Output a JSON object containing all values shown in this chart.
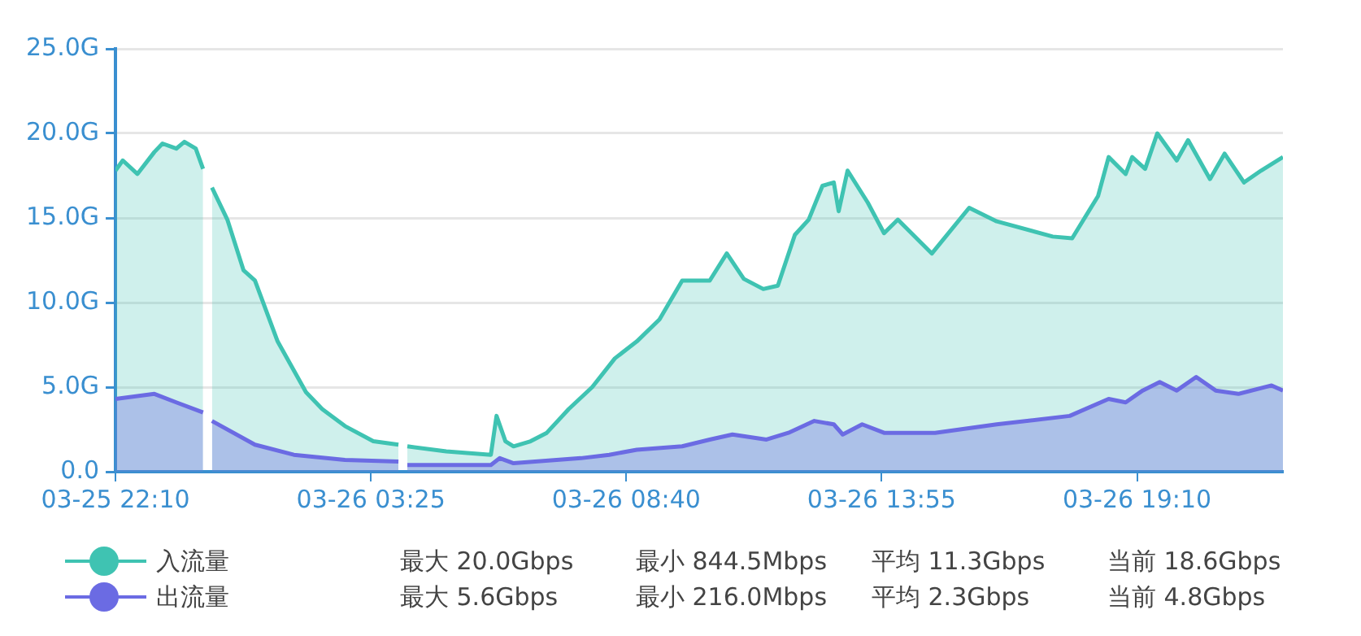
{
  "chart_data": {
    "type": "area",
    "xlim": [
      "--03-25T22:10",
      "--03-26T22:10"
    ],
    "xticks": [
      {
        "value": "--03-25T22:10",
        "label": "03-25 22:10"
      },
      {
        "value": "--03-26T03:25",
        "label": "03-26 03:25"
      },
      {
        "value": "--03-26T08:40",
        "label": "03-26 08:40"
      },
      {
        "value": "--03-26T13:55",
        "label": "03-26 13:55"
      },
      {
        "value": "--03-26T19:10",
        "label": "03-26 19:10"
      }
    ],
    "ylim": [
      0,
      25
    ],
    "yticks": [
      {
        "value": 0,
        "label": "0.0"
      },
      {
        "value": 5,
        "label": "5.0G"
      },
      {
        "value": 10,
        "label": "10.0G"
      },
      {
        "value": 15,
        "label": "15.0G"
      },
      {
        "value": 20,
        "label": "20.0G"
      },
      {
        "value": 25,
        "label": "25.0G"
      }
    ],
    "grid": "y",
    "legend": "bottom left",
    "marker": "none",
    "line_style": "solid",
    "series": [
      {
        "name": "入流量",
        "color": "#3fc3b2",
        "x": [
          "--03-25T22:10",
          "--03-25T22:19",
          "--03-25T22:37",
          "--03-25T22:58",
          "--03-25T23:08",
          "--03-25T23:25",
          "--03-25T23:35",
          "--03-25T23:49",
          "--03-25T23:58",
          "--03-26T00:04",
          "--03-26T00:09",
          "--03-26T00:28",
          "--03-26T00:48",
          "--03-26T01:02",
          "--03-26T01:30",
          "--03-26T02:05",
          "--03-26T02:25",
          "--03-26T02:53",
          "--03-26T03:28",
          "--03-26T03:59",
          "--03-26T04:04",
          "--03-26T04:10",
          "--03-26T04:58",
          "--03-26T05:53",
          "--03-26T06:00",
          "--03-26T06:11",
          "--03-26T06:21",
          "--03-26T06:42",
          "--03-26T07:02",
          "--03-26T07:29",
          "--03-26T07:58",
          "--03-26T08:26",
          "--03-26T08:53",
          "--03-26T09:21",
          "--03-26T09:49",
          "--03-26T10:23",
          "--03-26T10:44",
          "--03-26T11:05",
          "--03-26T11:29",
          "--03-26T11:47",
          "--03-26T12:08",
          "--03-26T12:25",
          "--03-26T12:42",
          "--03-26T12:56",
          "--03-26T13:02",
          "--03-26T13:13",
          "--03-26T13:38",
          "--03-26T13:58",
          "--03-26T14:15",
          "--03-26T14:57",
          "--03-26T15:43",
          "--03-26T16:17",
          "--03-26T17:26",
          "--03-26T17:50",
          "--03-26T18:22",
          "--03-26T18:35",
          "--03-26T18:56",
          "--03-26T19:04",
          "--03-26T19:20",
          "--03-26T19:35",
          "--03-26T19:59",
          "--03-26T20:13",
          "--03-26T20:40",
          "--03-26T20:58",
          "--03-26T21:22",
          "--03-26T21:43",
          "--03-26T22:10"
        ],
        "values": [
          17.8,
          18.4,
          17.6,
          18.9,
          19.4,
          19.1,
          19.5,
          19.1,
          17.9,
          null,
          16.8,
          14.9,
          11.9,
          11.3,
          7.7,
          4.7,
          3.7,
          2.7,
          1.8,
          1.6,
          null,
          1.5,
          1.2,
          1.0,
          3.3,
          1.8,
          1.5,
          1.8,
          2.3,
          3.7,
          5.0,
          6.7,
          7.7,
          9.0,
          11.3,
          11.3,
          12.9,
          11.4,
          10.8,
          11.0,
          14.0,
          14.9,
          16.9,
          17.1,
          15.4,
          17.8,
          15.9,
          14.1,
          14.9,
          12.9,
          15.6,
          14.8,
          13.9,
          13.8,
          16.3,
          18.6,
          17.6,
          18.6,
          17.9,
          20.0,
          18.4,
          19.6,
          17.3,
          18.8,
          17.1,
          17.8,
          18.6
        ]
      },
      {
        "name": "出流量",
        "color": "#6b6be3",
        "x": [
          "--03-25T22:10",
          "--03-25T22:58",
          "--03-25T23:25",
          "--03-25T23:58",
          "--03-26T00:04",
          "--03-26T00:09",
          "--03-26T01:02",
          "--03-26T01:50",
          "--03-26T02:53",
          "--03-26T03:59",
          "--03-26T04:04",
          "--03-26T04:10",
          "--03-26T05:53",
          "--03-26T06:04",
          "--03-26T06:21",
          "--03-26T07:44",
          "--03-26T08:19",
          "--03-26T08:53",
          "--03-26T09:49",
          "--03-26T10:23",
          "--03-26T10:51",
          "--03-26T11:33",
          "--03-26T12:00",
          "--03-26T12:32",
          "--03-26T12:56",
          "--03-26T13:07",
          "--03-26T13:31",
          "--03-26T13:58",
          "--03-26T15:01",
          "--03-26T16:17",
          "--03-26T17:47",
          "--03-26T18:35",
          "--03-26T18:56",
          "--03-26T19:17",
          "--03-26T19:38",
          "--03-26T19:59",
          "--03-26T20:23",
          "--03-26T20:47",
          "--03-26T21:15",
          "--03-26T21:56",
          "--03-26T22:10"
        ],
        "values": [
          4.3,
          4.6,
          4.1,
          3.5,
          null,
          3.0,
          1.6,
          1.0,
          0.7,
          0.6,
          null,
          0.4,
          0.4,
          0.8,
          0.5,
          0.8,
          1.0,
          1.3,
          1.5,
          1.9,
          2.2,
          1.9,
          2.3,
          3.0,
          2.8,
          2.2,
          2.8,
          2.3,
          2.3,
          2.8,
          3.3,
          4.3,
          4.1,
          4.8,
          5.3,
          4.8,
          5.6,
          4.8,
          4.6,
          5.1,
          4.8
        ]
      }
    ],
    "annotations": [
      "最大 20.0Gbps",
      "最小 844.5Mbps",
      "平均 11.3Gbps",
      "当前 18.6Gbps",
      "最大 5.6Gbps",
      "最小 216.0Mbps",
      "平均 2.3Gbps",
      "当前 4.8Gbps"
    ]
  }
}
